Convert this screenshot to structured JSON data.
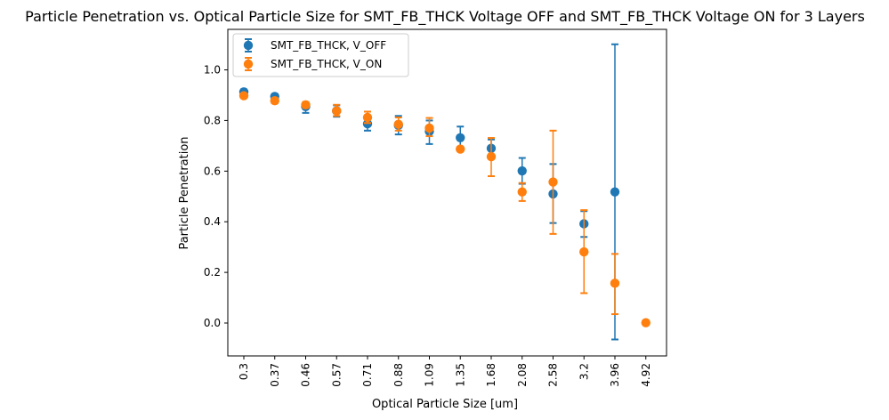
{
  "chart_data": {
    "type": "scatter",
    "title": "Particle Penetration vs. Optical Particle Size for SMT_FB_THCK Voltage OFF and SMT_FB_THCK Voltage ON for 3 Layers",
    "xlabel": "Optical Particle Size [um]",
    "ylabel": "Particle Penetration",
    "categories": [
      "0.3",
      "0.37",
      "0.46",
      "0.57",
      "0.71",
      "0.88",
      "1.09",
      "1.35",
      "1.68",
      "2.08",
      "2.58",
      "3.2",
      "3.96",
      "4.92"
    ],
    "ylim": [
      -0.13,
      1.16
    ],
    "yticks": [
      "0.0",
      "0.2",
      "0.4",
      "0.6",
      "0.8",
      "1.0"
    ],
    "legend_position": "top-left",
    "grid": false,
    "series": [
      {
        "name": "SMT_FB_THCK, V_OFF",
        "color": "#1f77b4",
        "values": [
          0.913,
          0.895,
          0.855,
          0.838,
          0.787,
          0.781,
          0.757,
          0.732,
          0.69,
          0.601,
          0.51,
          0.392,
          0.518,
          null
        ],
        "err_low": [
          0.903,
          0.885,
          0.83,
          0.815,
          0.76,
          0.745,
          0.707,
          0.69,
          0.655,
          0.55,
          0.395,
          0.34,
          -0.065,
          null
        ],
        "err_high": [
          0.923,
          0.905,
          0.87,
          0.86,
          0.81,
          0.818,
          0.8,
          0.776,
          0.725,
          0.652,
          0.628,
          0.442,
          1.101,
          null
        ]
      },
      {
        "name": "SMT_FB_THCK, V_ON",
        "color": "#ff7f0e",
        "values": [
          0.898,
          0.878,
          0.862,
          0.838,
          0.812,
          0.785,
          0.77,
          0.687,
          0.657,
          0.518,
          0.557,
          0.281,
          0.157,
          0.001
        ],
        "err_low": [
          0.893,
          0.868,
          0.85,
          0.818,
          0.79,
          0.76,
          0.738,
          0.68,
          0.58,
          0.482,
          0.352,
          0.118,
          0.035,
          0.0
        ],
        "err_high": [
          0.905,
          0.888,
          0.873,
          0.862,
          0.835,
          0.812,
          0.81,
          0.696,
          0.731,
          0.553,
          0.76,
          0.446,
          0.273,
          0.0
        ]
      }
    ]
  }
}
